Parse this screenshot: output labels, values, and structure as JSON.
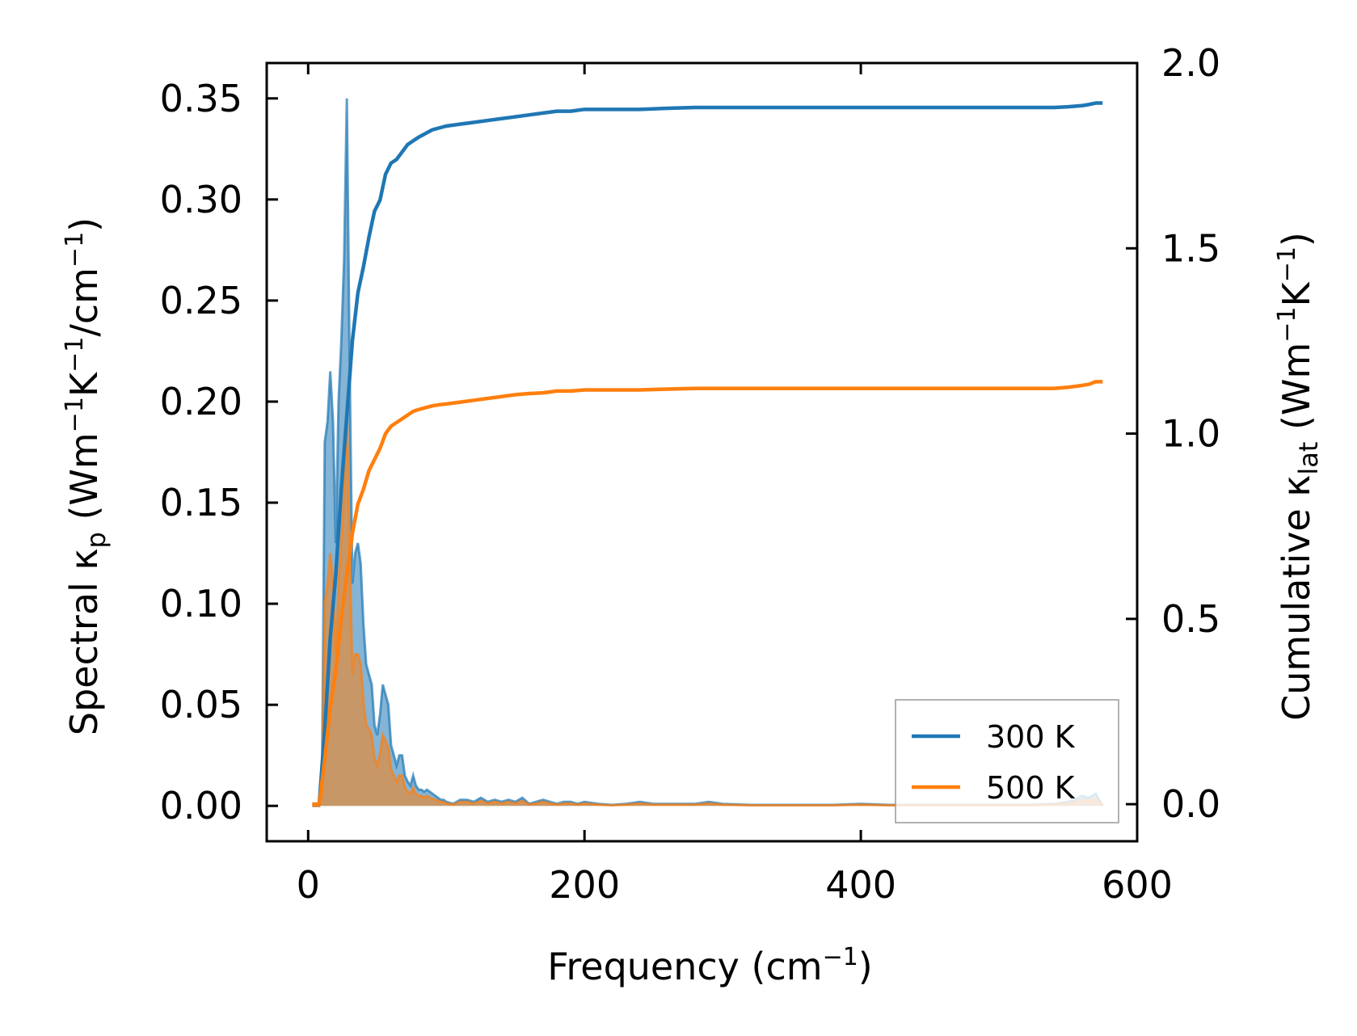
{
  "chart_data": {
    "type": "line",
    "xlabel": {
      "main": "Frequency (cm",
      "sup": "−1",
      "tail": ")"
    },
    "ylabel_left": {
      "a": "Spectral κ",
      "sub": "p",
      "b": " (Wm",
      "sup1": "−1",
      "c": "K",
      "sup2": "−1",
      "d": "/cm",
      "sup3": "−1",
      "e": ")"
    },
    "ylabel_right": {
      "a": "Cumulative κ",
      "sub": "lat",
      "b": " (Wm",
      "sup1": "−1",
      "c": "K",
      "sup2": "−1",
      "d": ")"
    },
    "xlim": [
      -30,
      600
    ],
    "ylim_left": [
      -0.0175,
      0.3675
    ],
    "ylim_right": [
      -0.1,
      2.0
    ],
    "x_ticks": [
      0,
      200,
      400,
      600
    ],
    "x_tick_labels": [
      "0",
      "200",
      "400",
      "600"
    ],
    "y_left_ticks": [
      0.0,
      0.05,
      0.1,
      0.15,
      0.2,
      0.25,
      0.3,
      0.35
    ],
    "y_left_tick_labels": [
      "0.00",
      "0.05",
      "0.10",
      "0.15",
      "0.20",
      "0.25",
      "0.30",
      "0.35"
    ],
    "y_right_ticks": [
      0.0,
      0.5,
      1.0,
      1.5,
      2.0
    ],
    "y_right_tick_labels": [
      "0.0",
      "0.5",
      "1.0",
      "1.5",
      "2.0"
    ],
    "legend_position": "bottom-right",
    "series": [
      {
        "name": "300 K",
        "color": "#1f77b4",
        "spectral": {
          "x": [
            3,
            8,
            10,
            12,
            14,
            16,
            18,
            20,
            22,
            24,
            26,
            28,
            30,
            32,
            34,
            36,
            38,
            40,
            42,
            44,
            46,
            48,
            50,
            52,
            54,
            56,
            58,
            60,
            62,
            64,
            66,
            68,
            70,
            72,
            74,
            76,
            78,
            80,
            82,
            84,
            86,
            88,
            90,
            92,
            94,
            96,
            98,
            100,
            105,
            110,
            115,
            120,
            125,
            130,
            135,
            140,
            145,
            150,
            155,
            160,
            165,
            170,
            175,
            180,
            185,
            190,
            195,
            200,
            210,
            220,
            230,
            240,
            250,
            260,
            270,
            280,
            290,
            300,
            320,
            340,
            360,
            380,
            400,
            420,
            440,
            460,
            480,
            500,
            520,
            540,
            550,
            555,
            560,
            565,
            570,
            575
          ],
          "y": [
            0,
            0,
            0.01,
            0.18,
            0.19,
            0.215,
            0.19,
            0.13,
            0.2,
            0.23,
            0.27,
            0.35,
            0.22,
            0.11,
            0.125,
            0.13,
            0.12,
            0.09,
            0.07,
            0.065,
            0.06,
            0.04,
            0.035,
            0.045,
            0.06,
            0.055,
            0.05,
            0.03,
            0.025,
            0.02,
            0.025,
            0.025,
            0.015,
            0.012,
            0.01,
            0.015,
            0.01,
            0.008,
            0.008,
            0.007,
            0.008,
            0.007,
            0.006,
            0.005,
            0.004,
            0.003,
            0.003,
            0.002,
            0.001,
            0.003,
            0.003,
            0.002,
            0.004,
            0.002,
            0.003,
            0.002,
            0.003,
            0.002,
            0.004,
            0.001,
            0.002,
            0.003,
            0.002,
            0.001,
            0.002,
            0.002,
            0.001,
            0.002,
            0.001,
            0.0005,
            0.001,
            0.002,
            0.001,
            0.001,
            0.001,
            0.001,
            0.002,
            0.001,
            0.0005,
            0.0005,
            0.0005,
            0.0005,
            0.001,
            0.0005,
            0.0005,
            0.0005,
            0.0005,
            0.0005,
            0.0005,
            0.001,
            0.002,
            0.003,
            0.005,
            0.004,
            0.006,
            0.0
          ]
        },
        "cumulative": {
          "x": [
            3,
            8,
            12,
            16,
            20,
            24,
            28,
            32,
            36,
            40,
            44,
            48,
            52,
            56,
            60,
            64,
            68,
            72,
            76,
            80,
            85,
            90,
            95,
            100,
            110,
            120,
            130,
            140,
            150,
            160,
            170,
            180,
            190,
            200,
            220,
            240,
            260,
            280,
            300,
            320,
            340,
            360,
            380,
            400,
            420,
            440,
            460,
            480,
            500,
            520,
            540,
            550,
            560,
            565,
            570,
            575
          ],
          "y": [
            0,
            0,
            0.2,
            0.45,
            0.62,
            0.85,
            1.05,
            1.25,
            1.38,
            1.45,
            1.53,
            1.6,
            1.63,
            1.7,
            1.73,
            1.74,
            1.76,
            1.78,
            1.79,
            1.8,
            1.81,
            1.82,
            1.825,
            1.83,
            1.835,
            1.84,
            1.845,
            1.85,
            1.855,
            1.86,
            1.865,
            1.87,
            1.87,
            1.875,
            1.875,
            1.875,
            1.878,
            1.88,
            1.88,
            1.88,
            1.88,
            1.88,
            1.88,
            1.88,
            1.88,
            1.88,
            1.88,
            1.88,
            1.88,
            1.88,
            1.88,
            1.882,
            1.885,
            1.888,
            1.892,
            1.892
          ]
        }
      },
      {
        "name": "500 K",
        "color": "#ff7f0e",
        "spectral": {
          "x": [
            3,
            8,
            10,
            12,
            14,
            16,
            18,
            20,
            22,
            24,
            26,
            28,
            30,
            32,
            34,
            36,
            38,
            40,
            42,
            44,
            46,
            48,
            50,
            52,
            54,
            56,
            58,
            60,
            62,
            64,
            66,
            68,
            70,
            72,
            74,
            76,
            78,
            80,
            82,
            84,
            86,
            88,
            90,
            92,
            94,
            96,
            98,
            100,
            105,
            110,
            115,
            120,
            125,
            130,
            135,
            140,
            145,
            150,
            155,
            160,
            165,
            170,
            175,
            180,
            185,
            190,
            195,
            200,
            210,
            220,
            230,
            240,
            250,
            260,
            270,
            280,
            290,
            300,
            320,
            340,
            360,
            380,
            400,
            420,
            440,
            460,
            480,
            500,
            520,
            540,
            550,
            555,
            560,
            565,
            570,
            575
          ],
          "y": [
            0,
            0,
            0.006,
            0.1,
            0.11,
            0.125,
            0.11,
            0.075,
            0.11,
            0.13,
            0.155,
            0.2,
            0.13,
            0.065,
            0.075,
            0.075,
            0.07,
            0.052,
            0.04,
            0.038,
            0.035,
            0.024,
            0.02,
            0.026,
            0.035,
            0.032,
            0.029,
            0.018,
            0.015,
            0.012,
            0.015,
            0.015,
            0.009,
            0.007,
            0.006,
            0.009,
            0.006,
            0.005,
            0.005,
            0.004,
            0.005,
            0.004,
            0.0035,
            0.003,
            0.0025,
            0.002,
            0.002,
            0.0012,
            0.0006,
            0.002,
            0.002,
            0.0012,
            0.0025,
            0.0012,
            0.002,
            0.0012,
            0.002,
            0.0012,
            0.0025,
            0.0006,
            0.0012,
            0.002,
            0.0012,
            0.0006,
            0.0012,
            0.0012,
            0.0006,
            0.0012,
            0.0006,
            0.0003,
            0.0006,
            0.0012,
            0.0006,
            0.0006,
            0.0006,
            0.0006,
            0.0012,
            0.0006,
            0.0003,
            0.0003,
            0.0003,
            0.0003,
            0.0006,
            0.0003,
            0.0003,
            0.0003,
            0.0003,
            0.0003,
            0.0003,
            0.0006,
            0.0012,
            0.002,
            0.003,
            0.0025,
            0.0035,
            0.0
          ]
        },
        "cumulative": {
          "x": [
            3,
            8,
            12,
            16,
            20,
            24,
            28,
            32,
            36,
            40,
            44,
            48,
            52,
            56,
            60,
            64,
            68,
            72,
            76,
            80,
            85,
            90,
            95,
            100,
            110,
            120,
            130,
            140,
            150,
            160,
            170,
            180,
            190,
            200,
            220,
            240,
            260,
            280,
            300,
            320,
            340,
            360,
            380,
            400,
            420,
            440,
            460,
            480,
            500,
            520,
            540,
            550,
            560,
            565,
            570,
            575
          ],
          "y": [
            0,
            0,
            0.12,
            0.26,
            0.36,
            0.5,
            0.62,
            0.73,
            0.81,
            0.85,
            0.9,
            0.93,
            0.96,
            1.0,
            1.02,
            1.03,
            1.04,
            1.05,
            1.06,
            1.065,
            1.07,
            1.075,
            1.078,
            1.08,
            1.085,
            1.09,
            1.095,
            1.1,
            1.105,
            1.108,
            1.11,
            1.115,
            1.115,
            1.118,
            1.118,
            1.118,
            1.12,
            1.122,
            1.122,
            1.122,
            1.122,
            1.122,
            1.122,
            1.122,
            1.122,
            1.122,
            1.122,
            1.122,
            1.122,
            1.122,
            1.122,
            1.125,
            1.13,
            1.133,
            1.14,
            1.14
          ]
        }
      }
    ]
  }
}
